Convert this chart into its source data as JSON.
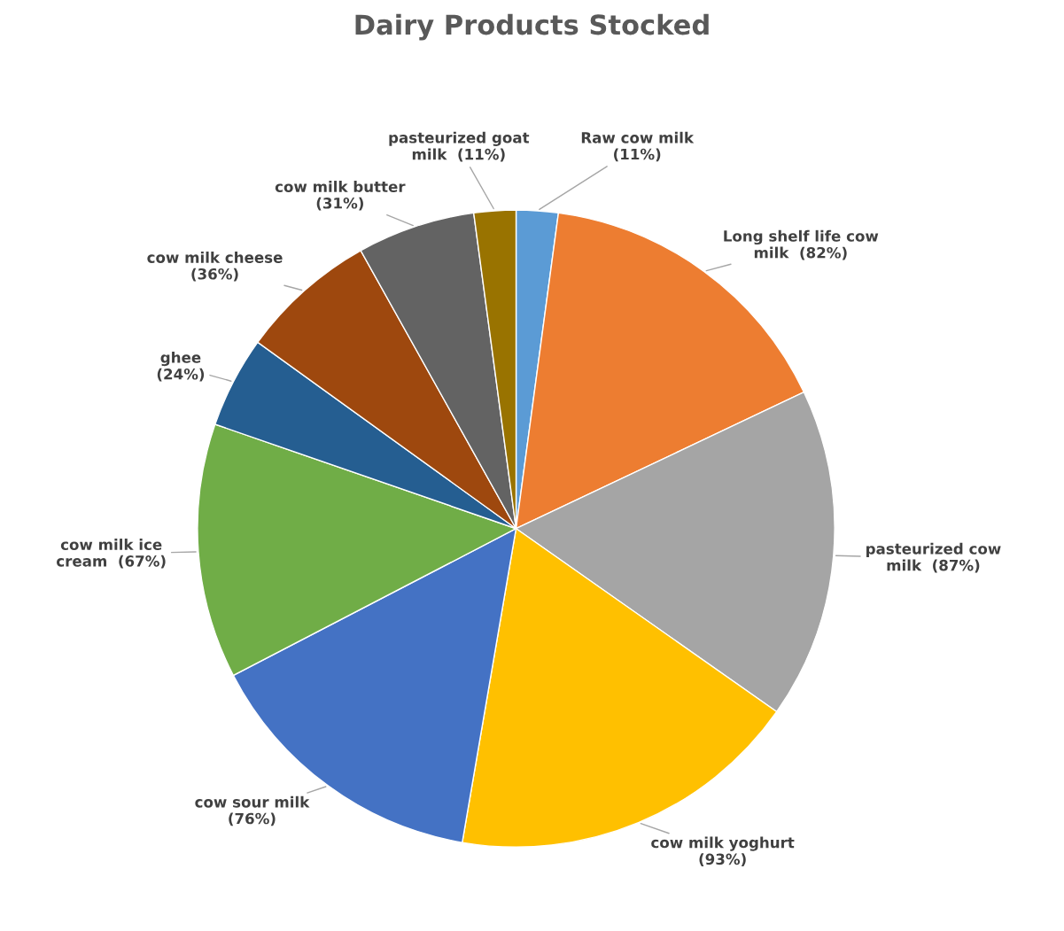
{
  "chart_data": {
    "type": "pie",
    "title": "Dairy Products Stocked",
    "categories": [
      "Raw cow milk",
      "Long shelf life cow milk",
      "pasteurized cow milk",
      "cow milk yoghurt",
      "cow sour milk",
      "cow milk ice cream",
      "ghee",
      "cow milk cheese",
      "cow milk butter",
      "pasteurized goat milk"
    ],
    "values": [
      11,
      82,
      87,
      93,
      76,
      67,
      24,
      36,
      31,
      11
    ],
    "value_labels": [
      "(11%)",
      "(82%)",
      "(87%)",
      "(93%)",
      "(76%)",
      "(67%)",
      "(24%)",
      "(36%)",
      "(31%)",
      "(11%)"
    ],
    "colors": [
      "#5b9bd5",
      "#ed7d31",
      "#a5a5a5",
      "#ffc000",
      "#4472c4",
      "#70ad47",
      "#255e91",
      "#9e480e",
      "#636363",
      "#997300"
    ],
    "legend": false
  }
}
